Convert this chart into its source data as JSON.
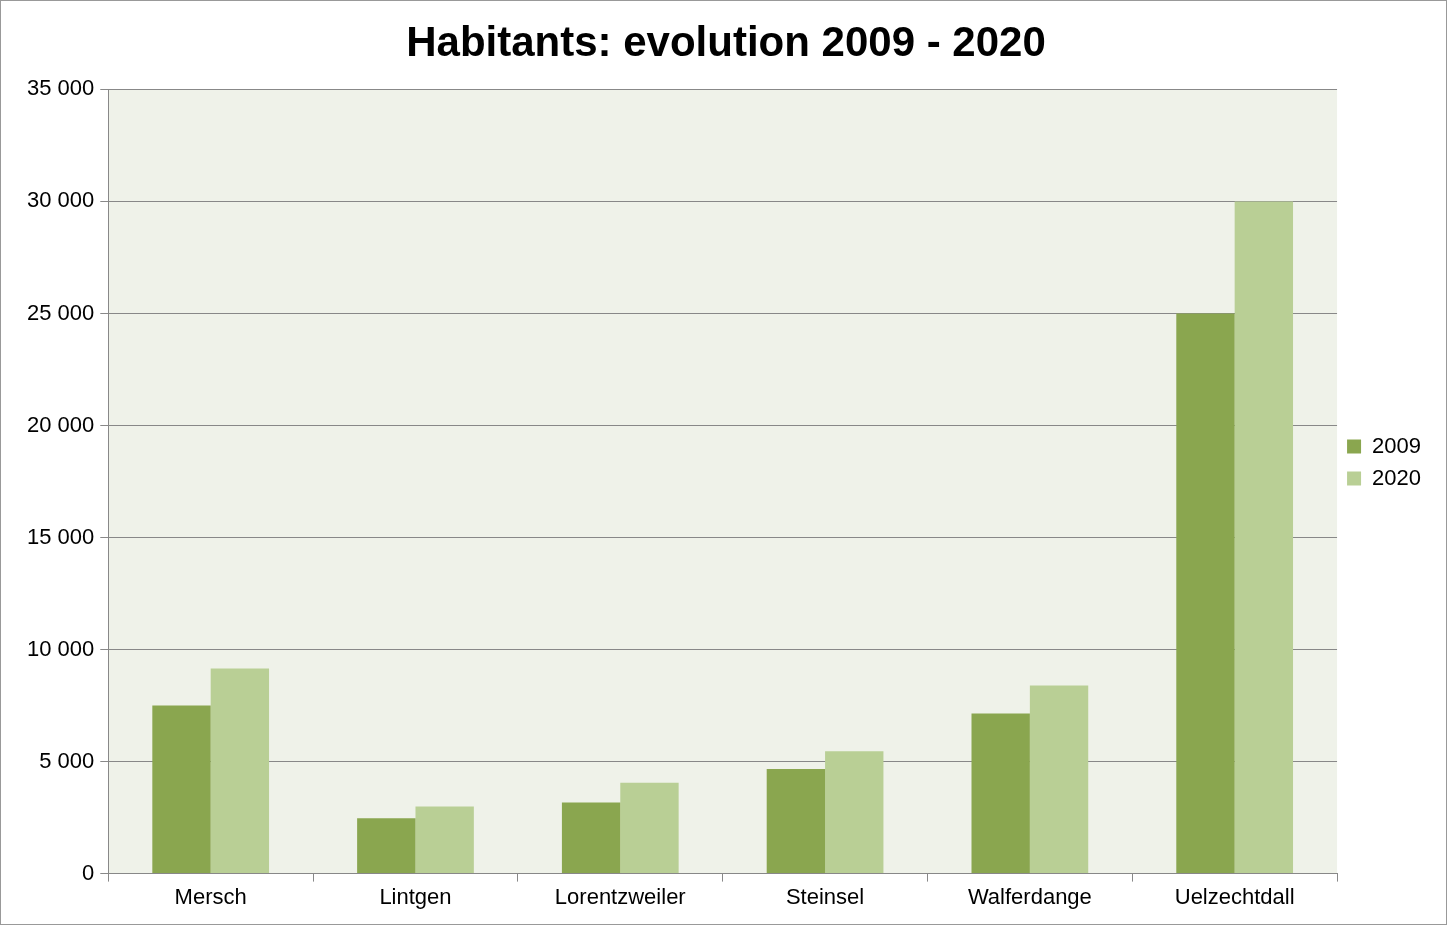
{
  "chart_data": {
    "type": "bar",
    "title": "Habitants: evolution 2009 - 2020",
    "categories": [
      "Mersch",
      "Lintgen",
      "Lorentzweiler",
      "Steinsel",
      "Walferdange",
      "Uelzechtdall"
    ],
    "series": [
      {
        "name": "2009",
        "color": "#8aa64f",
        "values": [
          7500,
          2470,
          3170,
          4670,
          7140,
          25000
        ]
      },
      {
        "name": "2020",
        "color": "#b9cf95",
        "values": [
          9150,
          3000,
          4060,
          5460,
          8400,
          30000
        ]
      }
    ],
    "ylim": [
      0,
      35000
    ],
    "yticks": [
      0,
      {
        "value": 5000,
        "label": "5 000"
      },
      {
        "value": 10000,
        "label": "10 000"
      },
      {
        "value": 15000,
        "label": "15 000"
      },
      {
        "value": 20000,
        "label": "20 000"
      },
      {
        "value": 25000,
        "label": "25 000"
      },
      {
        "value": 30000,
        "label": "30 000"
      },
      {
        "value": 35000,
        "label": "35 000"
      }
    ],
    "grid": "y",
    "legend": "right"
  }
}
